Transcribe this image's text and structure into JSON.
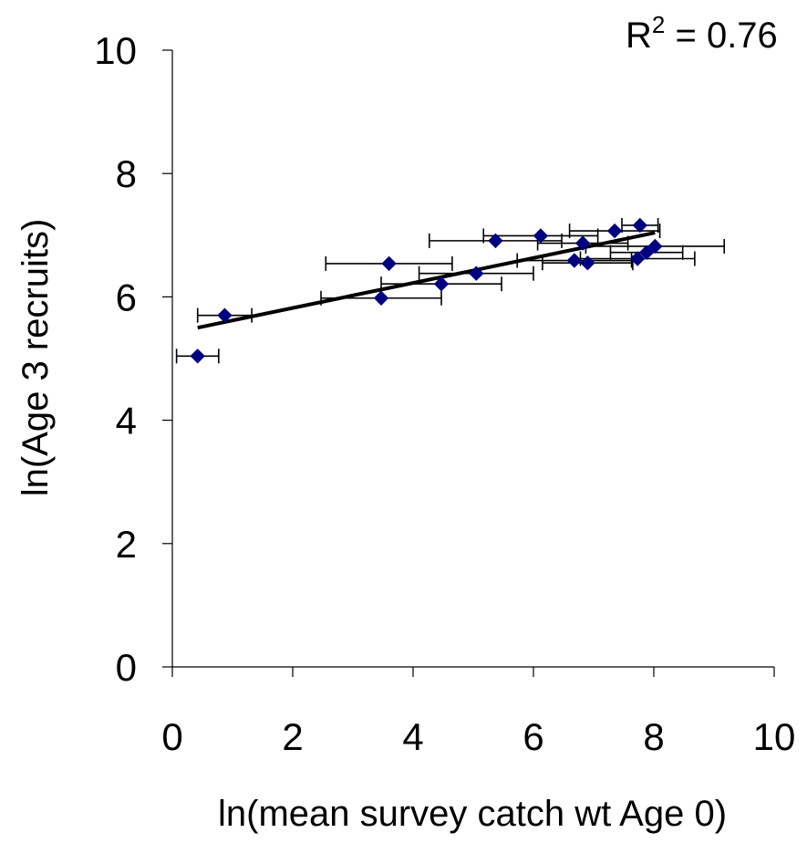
{
  "chart_data": {
    "type": "scatter",
    "xlabel": "ln(mean survey catch wt Age 0)",
    "ylabel": "ln(Age 3 recruits)",
    "xlim": [
      0,
      10
    ],
    "ylim": [
      0,
      10
    ],
    "x_ticks": [
      "0",
      "2",
      "4",
      "6",
      "8",
      "10"
    ],
    "y_ticks": [
      "0",
      "2",
      "4",
      "6",
      "8",
      "10"
    ],
    "annotation": {
      "prefix": "R",
      "sup": "2",
      "suffix": " = 0.76"
    },
    "colors": {
      "marker": "#000080",
      "trend": "#000000",
      "error_bar": "#000000"
    },
    "points": [
      {
        "x": 0.42,
        "y": 5.04,
        "xerr": 0.35
      },
      {
        "x": 0.87,
        "y": 5.7,
        "xerr": 0.45
      },
      {
        "x": 3.47,
        "y": 5.98,
        "xerr": 1.0
      },
      {
        "x": 3.6,
        "y": 6.54,
        "xerr": 1.05
      },
      {
        "x": 4.47,
        "y": 6.21,
        "xerr": 1.0
      },
      {
        "x": 5.05,
        "y": 6.38,
        "xerr": 0.95
      },
      {
        "x": 5.37,
        "y": 6.91,
        "xerr": 1.1
      },
      {
        "x": 6.12,
        "y": 6.99,
        "xerr": 0.95
      },
      {
        "x": 6.68,
        "y": 6.59,
        "xerr": 0.95
      },
      {
        "x": 6.82,
        "y": 6.87,
        "xerr": 0.75
      },
      {
        "x": 6.9,
        "y": 6.55,
        "xerr": 0.75
      },
      {
        "x": 7.35,
        "y": 7.07,
        "xerr": 0.75
      },
      {
        "x": 7.73,
        "y": 6.62,
        "xerr": 0.95
      },
      {
        "x": 7.77,
        "y": 7.16,
        "xerr": 0.3
      },
      {
        "x": 7.88,
        "y": 6.72,
        "xerr": 0.6
      },
      {
        "x": 8.02,
        "y": 6.82,
        "xerr": 1.15
      }
    ],
    "trendline": {
      "x0": 0.42,
      "y0": 5.5,
      "x1": 8.02,
      "y1": 7.04
    }
  }
}
